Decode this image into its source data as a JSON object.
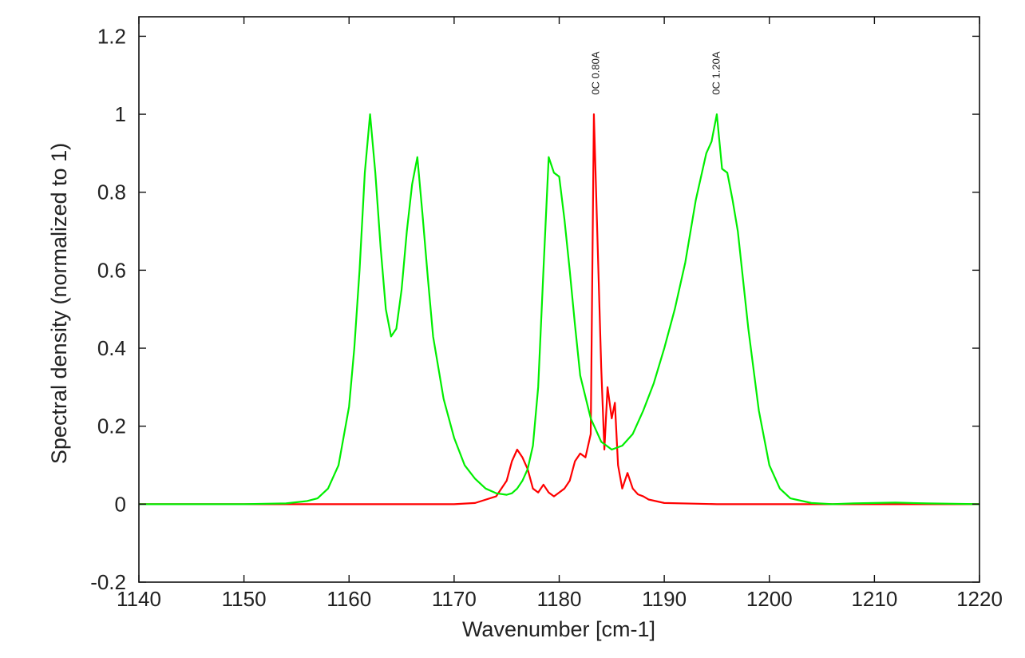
{
  "chart_data": {
    "type": "line",
    "title": "",
    "xlabel": "Wavenumber [cm-1]",
    "ylabel": "Spectral density (normalized to 1)",
    "xlim": [
      1140,
      1220
    ],
    "ylim": [
      -0.2,
      1.25
    ],
    "xticks": [
      1140,
      1150,
      1160,
      1170,
      1180,
      1190,
      1200,
      1210,
      1220
    ],
    "xtick_labels": [
      "1140",
      "1150",
      "1160",
      "1170",
      "1180",
      "1190",
      "1200",
      "1210",
      "1220"
    ],
    "yticks": [
      -0.2,
      0,
      0.2,
      0.4,
      0.6,
      0.8,
      1,
      1.2
    ],
    "ytick_labels": [
      "-0.2",
      "0",
      "0.2",
      "0.4",
      "0.6",
      "0.8",
      "1",
      "1.2"
    ],
    "grid": false,
    "legend": "none",
    "annotations": [
      {
        "text": "0C 0.80A",
        "x": 1183.4,
        "y": 1.05,
        "rotation": -90
      },
      {
        "text": "0C 1.20A",
        "x": 1194.9,
        "y": 1.05,
        "rotation": -90
      }
    ],
    "series": [
      {
        "color": "#ff0000",
        "x": [
          1140,
          1155,
          1165,
          1170,
          1172,
          1174,
          1175,
          1175.5,
          1176,
          1176.5,
          1177,
          1177.5,
          1178,
          1178.5,
          1179,
          1179.5,
          1180,
          1180.5,
          1181,
          1181.5,
          1182,
          1182.5,
          1183,
          1183.3,
          1183.6,
          1184,
          1184.3,
          1184.6,
          1185,
          1185.3,
          1185.6,
          1186,
          1186.5,
          1187,
          1187.5,
          1188,
          1188.5,
          1190,
          1195,
          1200,
          1210,
          1220
        ],
        "y": [
          0.0,
          0.0,
          0.0,
          0.0,
          0.003,
          0.02,
          0.06,
          0.11,
          0.14,
          0.12,
          0.09,
          0.04,
          0.03,
          0.05,
          0.03,
          0.02,
          0.03,
          0.04,
          0.06,
          0.11,
          0.13,
          0.12,
          0.18,
          1.0,
          0.72,
          0.35,
          0.14,
          0.3,
          0.22,
          0.26,
          0.1,
          0.04,
          0.08,
          0.04,
          0.025,
          0.02,
          0.012,
          0.003,
          0.0,
          0.0,
          0.0,
          0.0
        ]
      },
      {
        "color": "#00ee00",
        "x": [
          1140,
          1150,
          1154,
          1156,
          1157,
          1158,
          1159,
          1160,
          1160.5,
          1161,
          1161.5,
          1162,
          1162.5,
          1163,
          1163.5,
          1164,
          1164.5,
          1165,
          1165.5,
          1166,
          1166.5,
          1167,
          1167.5,
          1168,
          1169,
          1170,
          1171,
          1172,
          1173,
          1174,
          1175,
          1175.5,
          1176,
          1176.5,
          1177,
          1177.5,
          1178,
          1178.5,
          1179,
          1179.5,
          1180,
          1180.5,
          1181,
          1181.5,
          1182,
          1183,
          1184,
          1185,
          1186,
          1187,
          1188,
          1189,
          1190,
          1191,
          1192,
          1193,
          1194,
          1194.5,
          1195,
          1195.5,
          1196,
          1196.5,
          1197,
          1198,
          1199,
          1200,
          1201,
          1202,
          1204,
          1206,
          1208,
          1210,
          1212,
          1215,
          1220
        ],
        "y": [
          0.0,
          0.0,
          0.002,
          0.008,
          0.015,
          0.04,
          0.1,
          0.25,
          0.4,
          0.6,
          0.85,
          1.0,
          0.85,
          0.66,
          0.5,
          0.43,
          0.45,
          0.55,
          0.7,
          0.82,
          0.89,
          0.74,
          0.58,
          0.43,
          0.27,
          0.17,
          0.1,
          0.065,
          0.04,
          0.028,
          0.024,
          0.028,
          0.04,
          0.06,
          0.09,
          0.15,
          0.3,
          0.6,
          0.89,
          0.85,
          0.84,
          0.73,
          0.6,
          0.46,
          0.33,
          0.22,
          0.16,
          0.14,
          0.15,
          0.18,
          0.24,
          0.31,
          0.4,
          0.5,
          0.62,
          0.78,
          0.9,
          0.93,
          1.0,
          0.86,
          0.85,
          0.78,
          0.7,
          0.45,
          0.24,
          0.1,
          0.04,
          0.015,
          0.003,
          0.0,
          0.002,
          0.003,
          0.004,
          0.002,
          0.0
        ]
      }
    ]
  }
}
